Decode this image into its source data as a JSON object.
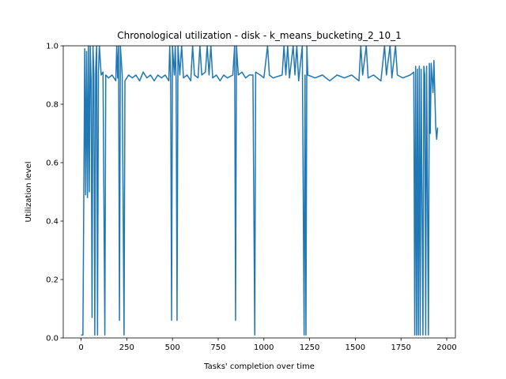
{
  "chart_data": {
    "type": "line",
    "title": "Chronological utilization - disk - k_means_bucketing_2_10_1",
    "xlabel": "Tasks' completion over time",
    "ylabel": "Utilization level",
    "color": "#1f77b4",
    "x": [
      0,
      10,
      15,
      20,
      25,
      30,
      35,
      40,
      45,
      50,
      55,
      60,
      65,
      70,
      75,
      80,
      85,
      90,
      95,
      100,
      110,
      120,
      130,
      135,
      150,
      170,
      190,
      195,
      200,
      205,
      210,
      215,
      225,
      235,
      240,
      260,
      280,
      300,
      320,
      340,
      360,
      380,
      400,
      420,
      440,
      460,
      480,
      485,
      490,
      495,
      500,
      510,
      515,
      520,
      525,
      530,
      540,
      550,
      560,
      580,
      600,
      610,
      620,
      640,
      650,
      660,
      680,
      690,
      700,
      710,
      720,
      740,
      760,
      780,
      800,
      830,
      840,
      845,
      850,
      860,
      880,
      900,
      920,
      940,
      950,
      955,
      980,
      1000,
      1020,
      1030,
      1050,
      1100,
      1110,
      1120,
      1130,
      1140,
      1160,
      1170,
      1180,
      1190,
      1210,
      1220,
      1225,
      1230,
      1235,
      1240,
      1280,
      1320,
      1360,
      1400,
      1440,
      1480,
      1520,
      1530,
      1540,
      1560,
      1570,
      1600,
      1640,
      1660,
      1670,
      1690,
      1700,
      1720,
      1730,
      1760,
      1800,
      1820,
      1825,
      1830,
      1835,
      1840,
      1845,
      1850,
      1855,
      1860,
      1870,
      1875,
      1880,
      1885,
      1890,
      1900,
      1905,
      1910,
      1915,
      1925,
      1930,
      1940,
      1945,
      1950
    ],
    "values": [
      0.01,
      0.01,
      0.49,
      0.99,
      0.49,
      0.98,
      0.48,
      1.0,
      0.5,
      1.0,
      0.88,
      0.07,
      1.0,
      0.9,
      0.01,
      0.92,
      1.0,
      0.01,
      0.91,
      1.0,
      0.9,
      0.91,
      0.01,
      0.9,
      0.89,
      0.9,
      0.88,
      1.0,
      0.89,
      1.0,
      0.06,
      1.0,
      0.9,
      0.01,
      0.88,
      0.9,
      0.89,
      0.9,
      0.88,
      0.91,
      0.89,
      0.9,
      0.88,
      0.9,
      0.89,
      0.9,
      0.88,
      1.0,
      0.89,
      0.06,
      1.0,
      0.9,
      1.0,
      0.88,
      0.06,
      1.0,
      0.9,
      1.0,
      0.89,
      0.9,
      0.88,
      1.0,
      0.9,
      0.89,
      1.0,
      0.9,
      0.91,
      1.0,
      0.9,
      1.0,
      0.89,
      0.9,
      0.88,
      0.9,
      0.89,
      0.9,
      1.0,
      0.06,
      1.0,
      0.9,
      0.91,
      0.89,
      0.9,
      0.9,
      0.01,
      0.91,
      0.9,
      0.89,
      1.0,
      0.9,
      0.89,
      0.9,
      1.0,
      0.9,
      1.0,
      0.89,
      1.0,
      0.9,
      1.0,
      0.88,
      1.0,
      0.01,
      0.9,
      0.01,
      1.0,
      0.9,
      0.89,
      0.9,
      0.88,
      0.9,
      0.89,
      0.9,
      0.88,
      1.0,
      0.9,
      1.0,
      0.89,
      0.9,
      0.88,
      1.0,
      0.9,
      1.0,
      0.89,
      1.0,
      0.9,
      0.89,
      0.9,
      0.91,
      0.01,
      0.93,
      0.01,
      0.92,
      0.01,
      0.93,
      0.01,
      0.92,
      0.01,
      0.93,
      0.9,
      0.01,
      0.93,
      0.01,
      0.94,
      0.7,
      0.94,
      0.84,
      0.95,
      0.72,
      0.68,
      0.72
    ],
    "xlim": [
      -97.5,
      2047.5
    ],
    "ylim": [
      0,
      1
    ],
    "xticks": [
      0,
      250,
      500,
      750,
      1000,
      1250,
      1500,
      1750,
      2000
    ],
    "yticks": [
      {
        "value": 0,
        "label": "0.0"
      },
      0.2,
      0.4,
      0.6,
      0.8,
      {
        "value": 1,
        "label": "1.0"
      }
    ]
  }
}
